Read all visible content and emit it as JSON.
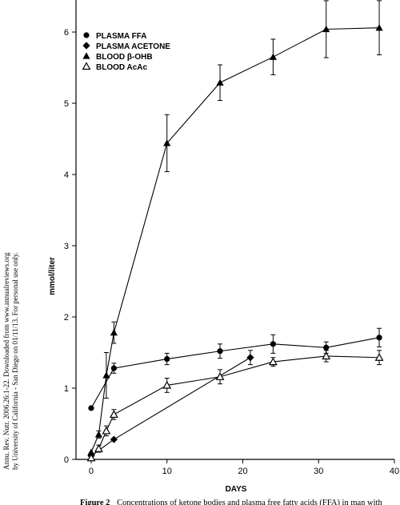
{
  "side_note": {
    "line1": "Annu. Rev. Nutr. 2006.26:1-22. Downloaded from www.annualreviews.org",
    "line2": "by University of California - San Diego on 01/11/13. For personal use only."
  },
  "caption": {
    "label": "Figure 2",
    "text": "Concentrations of ketone bodies and plasma free fatty acids (FFA) in man with"
  },
  "chart_data": {
    "type": "line",
    "xlabel": "DAYS",
    "ylabel": "mmol/liter",
    "xlim": [
      -2,
      40
    ],
    "ylim": [
      0,
      6.45
    ],
    "xticks": [
      0,
      10,
      20,
      30,
      40
    ],
    "yticks": [
      0,
      1,
      2,
      3,
      4,
      5,
      6
    ],
    "legend_position": "top-left",
    "grid": false,
    "series": [
      {
        "name": "PLASMA FFA",
        "marker": "circle",
        "x": [
          0,
          3,
          10,
          17,
          24,
          31,
          38
        ],
        "y": [
          0.72,
          1.28,
          1.41,
          1.52,
          1.62,
          1.57,
          1.71
        ],
        "err": [
          0,
          0.07,
          0.08,
          0.1,
          0.13,
          0.08,
          0.13
        ]
      },
      {
        "name": "PLASMA ACETONE",
        "marker": "diamond",
        "x": [
          0,
          3,
          21
        ],
        "y": [
          0.05,
          0.28,
          1.43
        ],
        "err": [
          0,
          0,
          0.1
        ]
      },
      {
        "name": "BLOOD β-OHB",
        "marker": "triangle",
        "x": [
          0,
          1,
          2,
          3,
          10,
          17,
          24,
          31,
          38
        ],
        "y": [
          0.1,
          0.35,
          1.18,
          1.78,
          4.44,
          5.29,
          5.65,
          6.04,
          6.06
        ],
        "err": [
          0,
          0.05,
          0.32,
          0.15,
          0.4,
          0.25,
          0.25,
          0.4,
          0.38
        ]
      },
      {
        "name": "BLOOD AcAc",
        "marker": "triangle-open",
        "x": [
          0,
          1,
          2,
          3,
          10,
          17,
          24,
          31,
          38
        ],
        "y": [
          0.02,
          0.15,
          0.4,
          0.63,
          1.04,
          1.16,
          1.37,
          1.45,
          1.43
        ],
        "err": [
          0,
          0.05,
          0.07,
          0.07,
          0.1,
          0.1,
          0.06,
          0.08,
          0.1
        ]
      }
    ]
  }
}
